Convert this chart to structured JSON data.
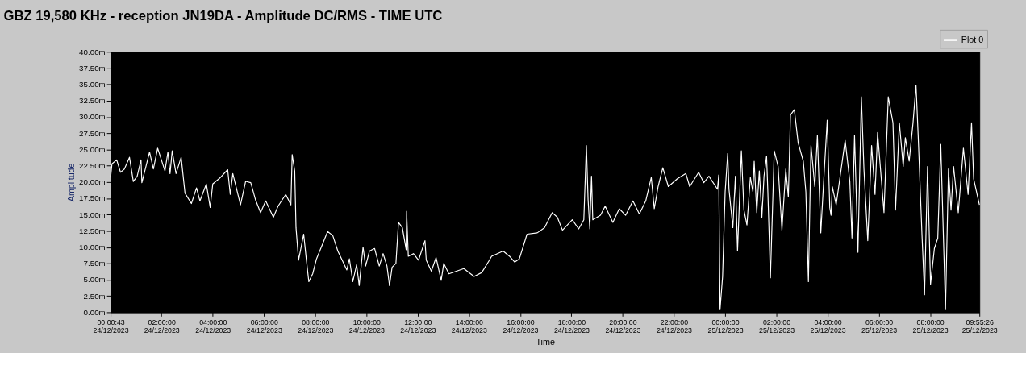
{
  "chart_data": {
    "type": "line",
    "title": "GBZ  19,580 KHz - reception JN19DA -  Amplitude DC/RMS   - TIME UTC",
    "xlabel": "Time",
    "ylabel": "Amplitude",
    "legend": "top right",
    "x": [
      "2023-12-24T00:00:43",
      "2023-12-24T00:04",
      "2023-12-24T00:15",
      "2023-12-24T00:24",
      "2023-12-24T00:33",
      "2023-12-24T00:45",
      "2023-12-24T00:54",
      "2023-12-24T01:03",
      "2023-12-24T01:12",
      "2023-12-24T01:14",
      "2023-12-24T01:32",
      "2023-12-24T01:41",
      "2023-12-24T01:51",
      "2023-12-24T02:08",
      "2023-12-24T02:15",
      "2023-12-24T02:20",
      "2023-12-24T02:25",
      "2023-12-24T02:34",
      "2023-12-24T02:46",
      "2023-12-24T02:55",
      "2023-12-24T03:10",
      "2023-12-24T03:22",
      "2023-12-24T03:30",
      "2023-12-24T03:45",
      "2023-12-24T03:54",
      "2023-12-24T04:00",
      "2023-12-24T04:18",
      "2023-12-24T04:35",
      "2023-12-24T04:41",
      "2023-12-24T04:47",
      "2023-12-24T05:05",
      "2023-12-24T05:17",
      "2023-12-24T05:29",
      "2023-12-24T05:40",
      "2023-12-24T05:52",
      "2023-12-24T06:04",
      "2023-12-24T06:22",
      "2023-12-24T06:33",
      "2023-12-24T06:51",
      "2023-12-24T07:03",
      "2023-12-24T07:06",
      "2023-12-24T07:12",
      "2023-12-24T07:15",
      "2023-12-24T07:21",
      "2023-12-24T07:33",
      "2023-12-24T07:39",
      "2023-12-24T07:45",
      "2023-12-24T07:54",
      "2023-12-24T08:03",
      "2023-12-24T08:18",
      "2023-12-24T08:29",
      "2023-12-24T08:41",
      "2023-12-24T08:53",
      "2023-12-24T09:14",
      "2023-12-24T09:20",
      "2023-12-24T09:28",
      "2023-12-24T09:37",
      "2023-12-24T09:43",
      "2023-12-24T09:52",
      "2023-12-24T09:58",
      "2023-12-24T10:07",
      "2023-12-24T10:19",
      "2023-12-24T10:30",
      "2023-12-24T10:39",
      "2023-12-24T10:48",
      "2023-12-24T10:54",
      "2023-12-24T11:00",
      "2023-12-24T11:09",
      "2023-12-24T11:15",
      "2023-12-24T11:24",
      "2023-12-24T11:33",
      "2023-12-24T11:34",
      "2023-12-24T11:38",
      "2023-12-24T11:50",
      "2023-12-24T12:02",
      "2023-12-24T12:17",
      "2023-12-24T12:20",
      "2023-12-24T12:32",
      "2023-12-24T12:43",
      "2023-12-24T12:55",
      "2023-12-24T13:01",
      "2023-12-24T13:13",
      "2023-12-24T13:48",
      "2023-12-24T14:12",
      "2023-12-24T14:30",
      "2023-12-24T14:48",
      "2023-12-24T14:53",
      "2023-12-24T15:20",
      "2023-12-24T15:35",
      "2023-12-24T15:47",
      "2023-12-24T15:58",
      "2023-12-24T16:16",
      "2023-12-24T16:40",
      "2023-12-24T16:57",
      "2023-12-24T17:15",
      "2023-12-24T17:27",
      "2023-12-24T17:39",
      "2023-12-24T18:02",
      "2023-12-24T18:17",
      "2023-12-24T18:29",
      "2023-12-24T18:35",
      "2023-12-24T18:39",
      "2023-12-24T18:43",
      "2023-12-24T18:47",
      "2023-12-24T18:50",
      "2023-12-24T19:08",
      "2023-12-24T19:19",
      "2023-12-24T19:37",
      "2023-12-24T19:52",
      "2023-12-24T20:07",
      "2023-12-24T20:24",
      "2023-12-24T20:39",
      "2023-12-24T20:54",
      "2023-12-24T21:07",
      "2023-12-24T21:14",
      "2023-12-24T21:23",
      "2023-12-24T21:34",
      "2023-12-24T21:47",
      "2023-12-24T22:08",
      "2023-12-24T22:28",
      "2023-12-24T22:37",
      "2023-12-24T22:58",
      "2023-12-24T23:10",
      "2023-12-24T23:22",
      "2023-12-24T23:42",
      "2023-12-24T23:45",
      "2023-12-24T23:48",
      "2023-12-24T23:54",
      "2023-12-25T00:00",
      "2023-12-25T00:06",
      "2023-12-25T00:09",
      "2023-12-25T00:18",
      "2023-12-25T00:24",
      "2023-12-25T00:29",
      "2023-12-25T00:38",
      "2023-12-25T00:44",
      "2023-12-25T00:51",
      "2023-12-25T00:59",
      "2023-12-25T01:05",
      "2023-12-25T01:08",
      "2023-12-25T01:14",
      "2023-12-25T01:20",
      "2023-12-25T01:26",
      "2023-12-25T01:31",
      "2023-12-25T01:37",
      "2023-12-25T01:40",
      "2023-12-25T01:46",
      "2023-12-25T01:55",
      "2023-12-25T02:04",
      "2023-12-25T02:13",
      "2023-12-25T02:22",
      "2023-12-25T02:28",
      "2023-12-25T02:33",
      "2023-12-25T02:42",
      "2023-12-25T02:51",
      "2023-12-25T03:03",
      "2023-12-25T03:09",
      "2023-12-25T03:15",
      "2023-12-25T03:21",
      "2023-12-25T03:30",
      "2023-12-25T03:36",
      "2023-12-25T03:44",
      "2023-12-25T03:50",
      "2023-12-25T03:59",
      "2023-12-25T04:05",
      "2023-12-25T04:08",
      "2023-12-25T04:11",
      "2023-12-25T04:20",
      "2023-12-25T04:26",
      "2023-12-25T04:41",
      "2023-12-25T04:52",
      "2023-12-25T04:57",
      "2023-12-25T05:03",
      "2023-12-25T05:11",
      "2023-12-25T05:19",
      "2023-12-25T05:25",
      "2023-12-25T05:34",
      "2023-12-25T05:43",
      "2023-12-25T05:51",
      "2023-12-25T05:57",
      "2023-12-25T06:12",
      "2023-12-25T06:22",
      "2023-12-25T06:33",
      "2023-12-25T06:39",
      "2023-12-25T06:48",
      "2023-12-25T06:57",
      "2023-12-25T07:02",
      "2023-12-25T07:11",
      "2023-12-25T07:20",
      "2023-12-25T07:27",
      "2023-12-25T07:32",
      "2023-12-25T07:41",
      "2023-12-25T07:47",
      "2023-12-25T07:54",
      "2023-12-25T08:01",
      "2023-12-25T08:10",
      "2023-12-25T08:18",
      "2023-12-25T08:25",
      "2023-12-25T08:36",
      "2023-12-25T08:43",
      "2023-12-25T08:49",
      "2023-12-25T08:55",
      "2023-12-25T09:06",
      "2023-12-25T09:18",
      "2023-12-25T09:29",
      "2023-12-25T09:37",
      "2023-12-25T09:42",
      "2023-12-25T09:55:26"
    ],
    "series": [
      {
        "name": "Plot 0",
        "color": "#ffffff",
        "values": [
          20.7,
          22.8,
          23.4,
          21.5,
          22.0,
          23.8,
          20.1,
          20.9,
          23.4,
          19.9,
          24.6,
          22.0,
          25.2,
          21.7,
          24.6,
          21.3,
          24.8,
          21.3,
          23.8,
          18.3,
          16.7,
          19.1,
          17.1,
          19.7,
          16.1,
          19.7,
          20.7,
          21.9,
          18.1,
          21.3,
          16.5,
          20.1,
          19.9,
          17.3,
          15.3,
          17.1,
          14.6,
          16.3,
          18.1,
          16.5,
          24.2,
          21.7,
          13.0,
          8.0,
          12.0,
          8.2,
          4.7,
          5.9,
          8.2,
          10.6,
          12.4,
          11.8,
          9.4,
          6.5,
          8.2,
          4.7,
          7.3,
          4.1,
          10.0,
          7.1,
          9.4,
          9.8,
          7.1,
          9.0,
          7.1,
          4.1,
          6.9,
          7.5,
          13.8,
          13.0,
          9.6,
          15.5,
          8.6,
          9.0,
          8.0,
          11.0,
          8.0,
          6.3,
          8.4,
          4.9,
          7.5,
          5.9,
          6.7,
          5.5,
          6.1,
          8.0,
          8.6,
          9.4,
          8.6,
          7.7,
          8.2,
          12.0,
          12.2,
          13.0,
          15.3,
          14.6,
          12.6,
          14.2,
          12.8,
          14.2,
          25.6,
          17.3,
          12.8,
          20.9,
          14.2,
          14.9,
          16.3,
          13.8,
          15.9,
          14.9,
          17.1,
          15.1,
          17.1,
          20.7,
          15.9,
          19.3,
          22.2,
          19.3,
          20.5,
          21.3,
          19.3,
          21.5,
          19.9,
          20.9,
          18.9,
          21.1,
          0.4,
          5.5,
          18.5,
          24.4,
          18.9,
          13.0,
          20.9,
          9.4,
          24.8,
          15.7,
          13.4,
          20.7,
          18.5,
          23.2,
          15.3,
          21.7,
          14.6,
          20.9,
          24.0,
          18.5,
          5.3,
          24.8,
          22.4,
          12.6,
          22.0,
          17.7,
          30.3,
          31.1,
          26.0,
          23.2,
          18.5,
          4.7,
          25.6,
          19.3,
          27.2,
          12.2,
          19.3,
          29.5,
          16.1,
          14.9,
          19.3,
          16.5,
          19.3,
          26.4,
          20.1,
          11.4,
          27.2,
          9.2,
          33.1,
          22.0,
          11.0,
          25.6,
          18.1,
          27.6,
          15.3,
          33.1,
          29.1,
          15.7,
          29.1,
          22.4,
          26.8,
          23.2,
          29.1,
          34.9,
          27.2,
          11.8,
          2.7,
          22.4,
          4.3,
          9.8,
          11.4,
          25.8,
          0.4,
          22.0,
          15.7,
          22.4,
          15.3,
          25.2,
          18.1,
          29.1,
          20.5,
          16.5
        ]
      }
    ],
    "xlim": [
      "2023-12-24T00:00:43",
      "2023-12-25T09:55:26"
    ],
    "xticks": [
      {
        "value": "2023-12-24T00:00:43",
        "label": "00:00:43\n24/12/2023"
      },
      {
        "value": "2023-12-24T02:00",
        "label": "02:00:00\n24/12/2023"
      },
      {
        "value": "2023-12-24T04:00",
        "label": "04:00:00\n24/12/2023"
      },
      {
        "value": "2023-12-24T06:00",
        "label": "06:00:00\n24/12/2023"
      },
      {
        "value": "2023-12-24T08:00",
        "label": "08:00:00\n24/12/2023"
      },
      {
        "value": "2023-12-24T10:00",
        "label": "10:00:00\n24/12/2023"
      },
      {
        "value": "2023-12-24T12:00",
        "label": "12:00:00\n24/12/2023"
      },
      {
        "value": "2023-12-24T14:00",
        "label": "14:00:00\n24/12/2023"
      },
      {
        "value": "2023-12-24T16:00",
        "label": "16:00:00\n24/12/2023"
      },
      {
        "value": "2023-12-24T18:00",
        "label": "18:00:00\n24/12/2023"
      },
      {
        "value": "2023-12-24T20:00",
        "label": "20:00:00\n24/12/2023"
      },
      {
        "value": "2023-12-24T22:00",
        "label": "22:00:00\n24/12/2023"
      },
      {
        "value": "2023-12-25T00:00",
        "label": "00:00:00\n25/12/2023"
      },
      {
        "value": "2023-12-25T02:00",
        "label": "02:00:00\n25/12/2023"
      },
      {
        "value": "2023-12-25T04:00",
        "label": "04:00:00\n25/12/2023"
      },
      {
        "value": "2023-12-25T06:00",
        "label": "06:00:00\n25/12/2023"
      },
      {
        "value": "2023-12-25T08:00",
        "label": "08:00:00\n25/12/2023"
      },
      {
        "value": "2023-12-25T09:55:26",
        "label": "09:55:26\n25/12/2023"
      }
    ],
    "ylim": [
      0,
      40
    ],
    "yticks": [
      {
        "value": 0,
        "label": "0.00m"
      },
      {
        "value": 2.5,
        "label": "2.50m"
      },
      {
        "value": 5,
        "label": "5.00m"
      },
      {
        "value": 7.5,
        "label": "7.50m"
      },
      {
        "value": 10,
        "label": "10.00m"
      },
      {
        "value": 12.5,
        "label": "12.50m"
      },
      {
        "value": 15,
        "label": "15.00m"
      },
      {
        "value": 17.5,
        "label": "17.50m"
      },
      {
        "value": 20,
        "label": "20.00m"
      },
      {
        "value": 22.5,
        "label": "22.50m"
      },
      {
        "value": 25,
        "label": "25.00m"
      },
      {
        "value": 27.5,
        "label": "27.50m"
      },
      {
        "value": 30,
        "label": "30.00m"
      },
      {
        "value": 32.5,
        "label": "32.50m"
      },
      {
        "value": 35,
        "label": "35.00m"
      },
      {
        "value": 37.5,
        "label": "37.50m"
      },
      {
        "value": 40,
        "label": "40.00m"
      }
    ]
  }
}
